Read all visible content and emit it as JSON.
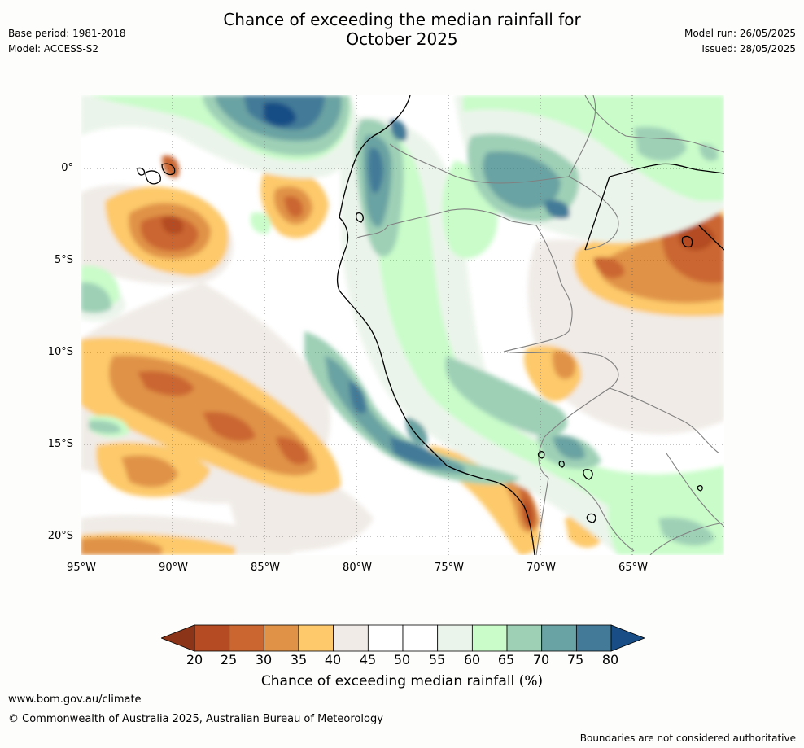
{
  "title": {
    "line1": "Chance of exceeding the median rainfall for",
    "line2": "October 2025"
  },
  "meta": {
    "base_period": "Base period: 1981-2018",
    "model": "Model: ACCESS-S2",
    "model_run": "Model run: 26/05/2025",
    "issued": "Issued: 28/05/2025"
  },
  "map": {
    "lat_labels": [
      "0°",
      "5°S",
      "10°S",
      "15°S",
      "20°S"
    ],
    "lon_labels": [
      "95°W",
      "90°W",
      "85°W",
      "80°W",
      "75°W",
      "70°W",
      "65°W"
    ],
    "grid": "dotted"
  },
  "colorbar": {
    "ticks": [
      "20",
      "25",
      "30",
      "35",
      "40",
      "45",
      "50",
      "55",
      "60",
      "65",
      "70",
      "75",
      "80"
    ],
    "colors": [
      "#8c3418",
      "#b44b23",
      "#cb6630",
      "#e09346",
      "#fdc96a",
      "#f0ebe6",
      "#ffffff",
      "#ffffff",
      "#ebf4eb",
      "#c9fcc9",
      "#9ed0b6",
      "#6aa3a3",
      "#437a98",
      "#184d85"
    ],
    "label": "Chance of exceeding median rainfall (%)"
  },
  "footer": {
    "url": "www.bom.gov.au/climate",
    "copyright": "© Commonwealth of Australia 2025, Australian Bureau of Meteorology",
    "note": "Boundaries are not considered authoritative"
  }
}
